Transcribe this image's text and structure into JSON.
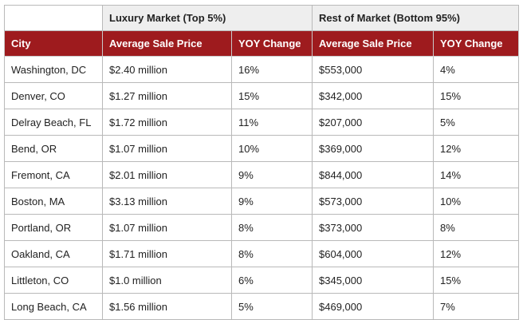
{
  "chart_data": {
    "type": "table",
    "column_groups": [
      {
        "label": "",
        "span": 1
      },
      {
        "label": "Luxury Market (Top 5%)",
        "span": 2
      },
      {
        "label": "Rest of Market (Bottom 95%)",
        "span": 2
      }
    ],
    "columns": [
      "City",
      "Average Sale Price",
      "YOY Change",
      "Average Sale Price",
      "YOY Change"
    ],
    "rows": [
      [
        "Washington, DC",
        "$2.40 million",
        "16%",
        "$553,000",
        "4%"
      ],
      [
        "Denver, CO",
        "$1.27 million",
        "15%",
        "$342,000",
        "15%"
      ],
      [
        "Delray Beach, FL",
        "$1.72 million",
        "11%",
        "$207,000",
        "5%"
      ],
      [
        "Bend, OR",
        "$1.07 million",
        "10%",
        "$369,000",
        "12%"
      ],
      [
        "Fremont, CA",
        "$2.01 million",
        "9%",
        "$844,000",
        "14%"
      ],
      [
        "Boston, MA",
        "$3.13 million",
        "9%",
        "$573,000",
        "10%"
      ],
      [
        "Portland, OR",
        "$1.07 million",
        "8%",
        "$373,000",
        "8%"
      ],
      [
        "Oakland, CA",
        "$1.71 million",
        "8%",
        "$604,000",
        "12%"
      ],
      [
        "Littleton, CO",
        "$1.0 million",
        "6%",
        "$345,000",
        "15%"
      ],
      [
        "Long Beach, CA",
        "$1.56 million",
        "5%",
        "$469,000",
        "7%"
      ]
    ],
    "colors": {
      "header_background": "#9e1b1e",
      "header_text": "#ffffff",
      "group_background": "#eeeeee",
      "border": "#b9b9b9"
    }
  }
}
